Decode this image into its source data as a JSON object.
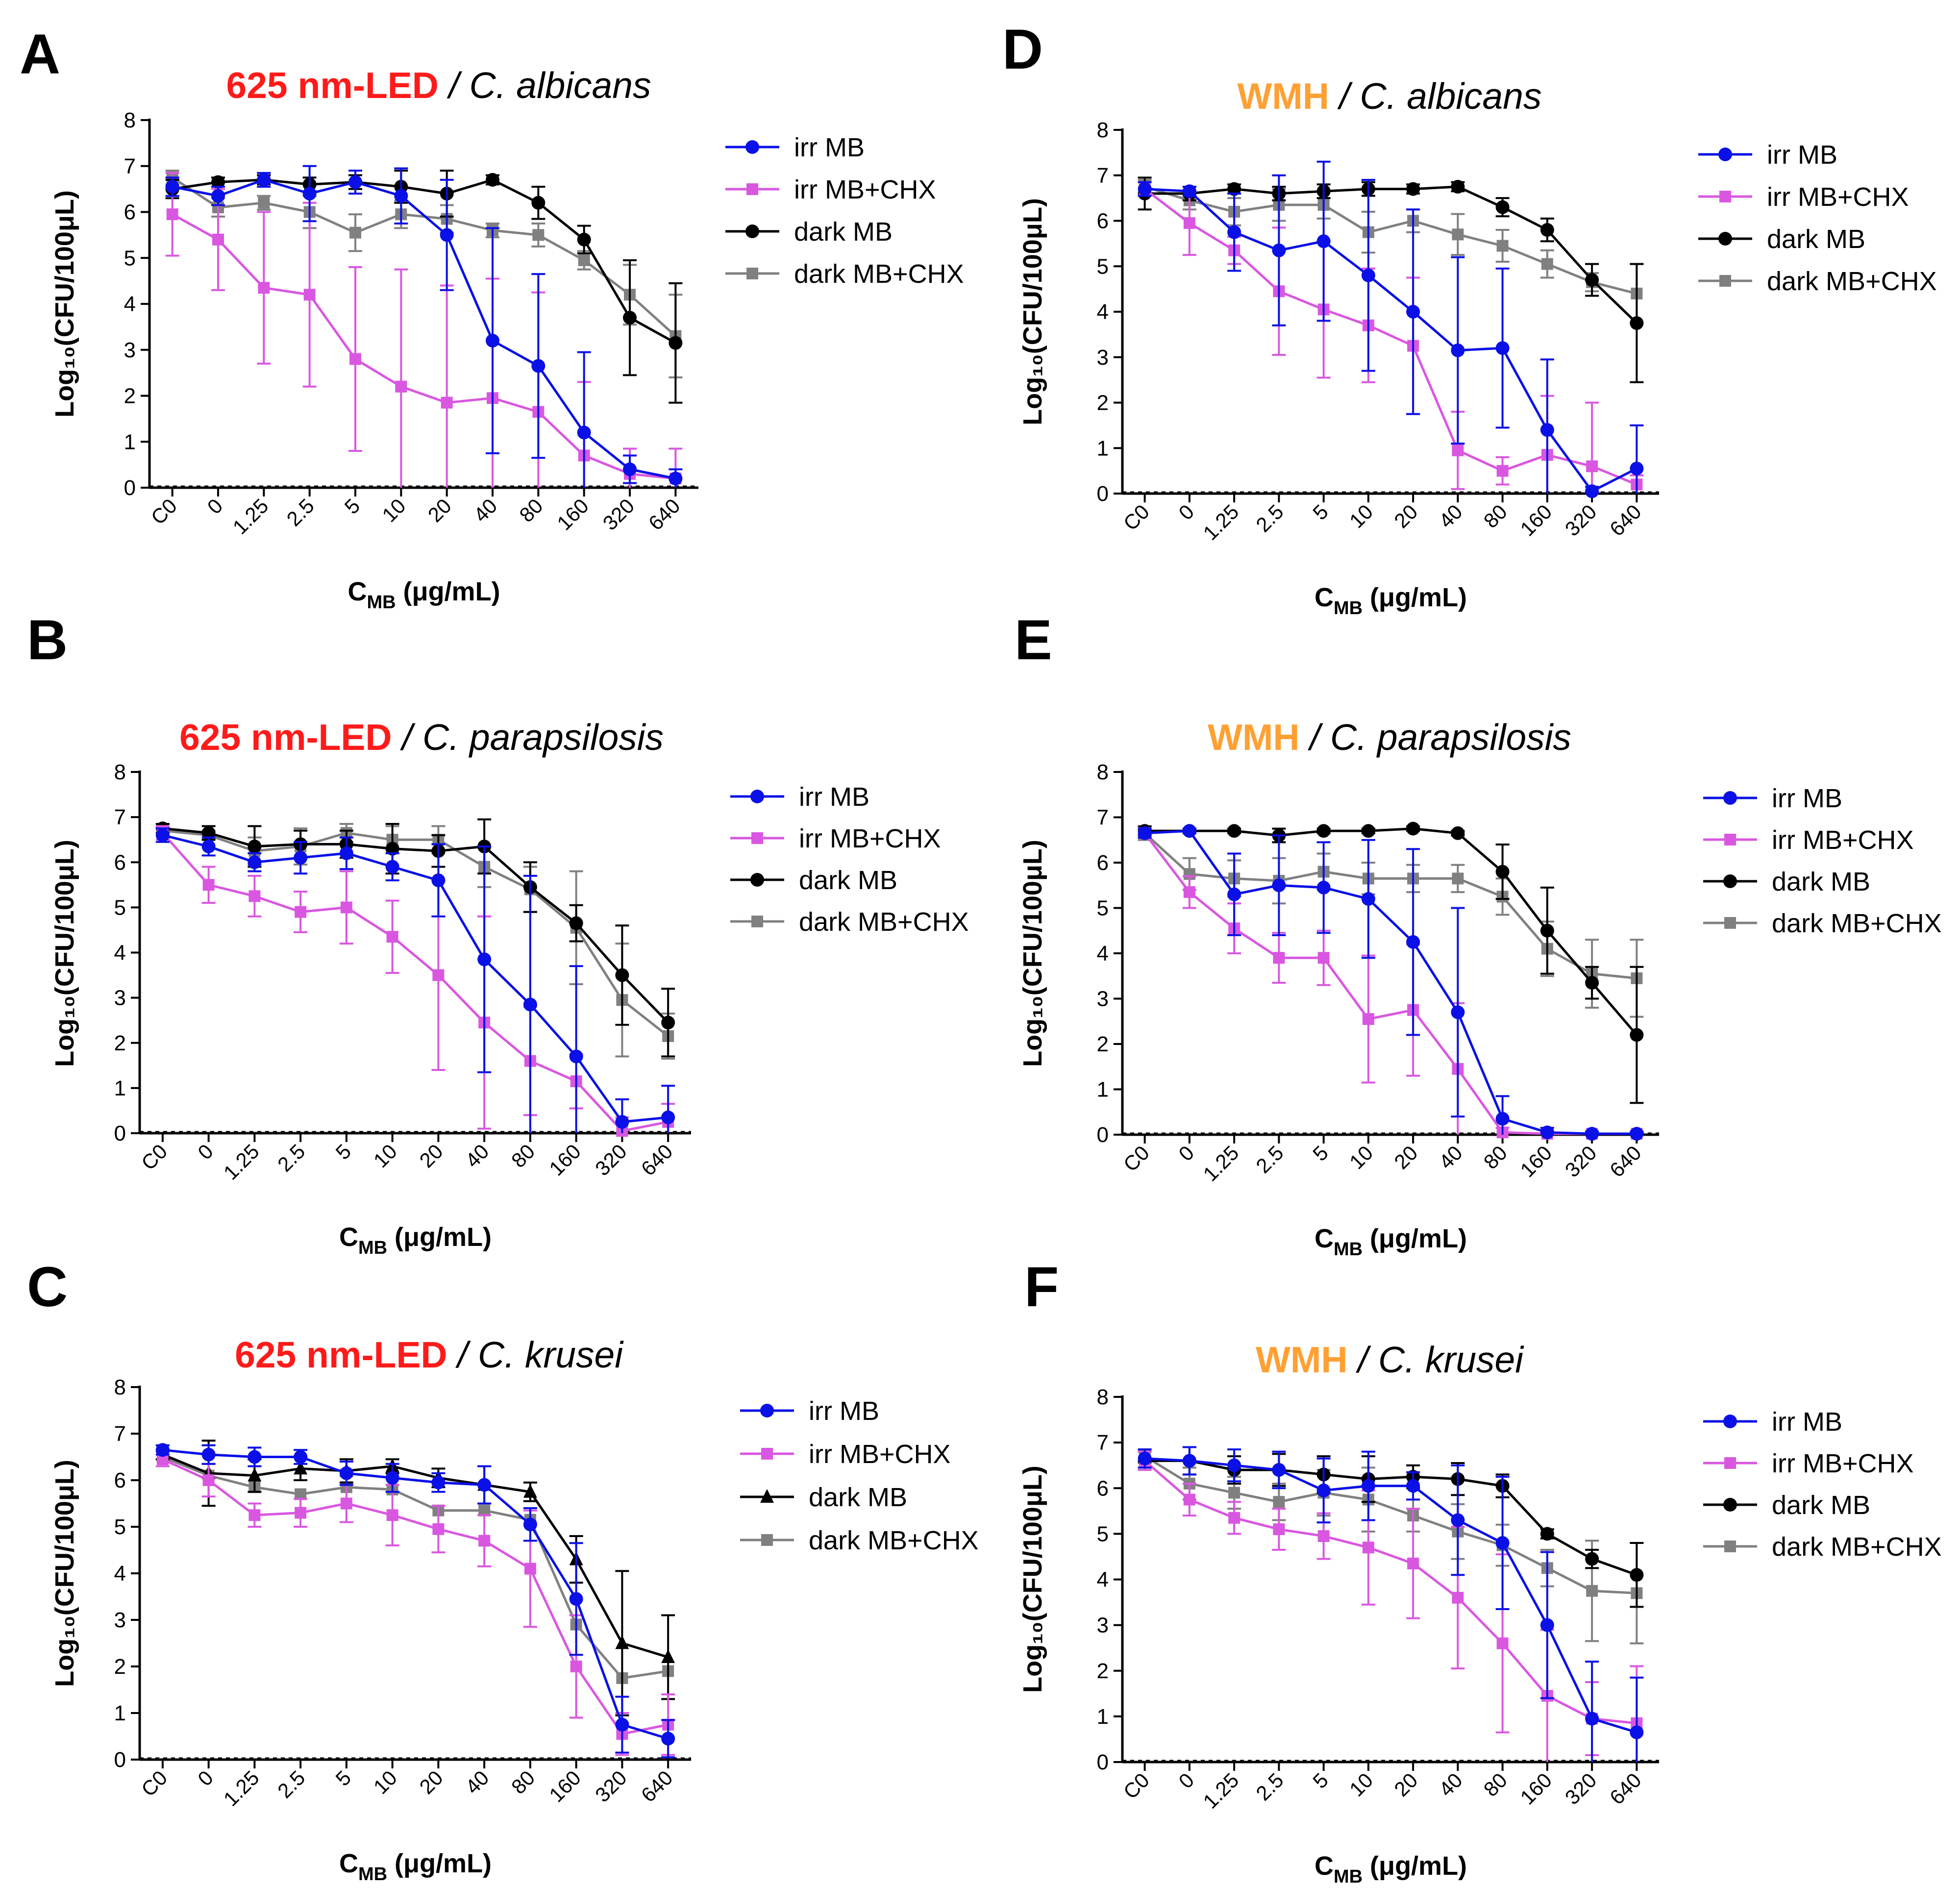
{
  "chart_data": [
    {
      "panel": "A",
      "type": "line",
      "title_highlight": "625 nm-LED",
      "title_highlight_color": "#ff1a1a",
      "title_rest": " / C. albicans",
      "ylabel": "Log₁₀(CFU/100μL)",
      "xlabel": "C_MB (μg/mL)",
      "ylim": [
        0,
        8
      ],
      "categories": [
        "C0",
        "0",
        "1.25",
        "2.5",
        "5",
        "10",
        "20",
        "40",
        "80",
        "160",
        "320",
        "640"
      ],
      "series": [
        {
          "name": "irr MB",
          "color": "#0a10e6",
          "marker": "circle",
          "values": [
            6.55,
            6.35,
            6.7,
            6.4,
            6.65,
            6.35,
            5.5,
            3.2,
            2.65,
            1.2,
            0.4,
            0.2
          ],
          "errors": [
            0.2,
            0.2,
            0.15,
            0.6,
            0.25,
            0.6,
            1.2,
            2.45,
            2.0,
            1.75,
            0.3,
            0.2
          ]
        },
        {
          "name": "irr MB+CHX",
          "color": "#d957e0",
          "marker": "square",
          "values": [
            5.95,
            5.4,
            4.35,
            4.2,
            2.8,
            2.2,
            1.85,
            1.95,
            1.65,
            0.7,
            0.3,
            0.2
          ],
          "errors": [
            0.9,
            1.1,
            1.65,
            2.0,
            2.0,
            2.55,
            2.55,
            2.6,
            2.6,
            1.6,
            0.55,
            0.65
          ]
        },
        {
          "name": "dark MB",
          "color": "#000000",
          "marker": "circle",
          "values": [
            6.5,
            6.65,
            6.7,
            6.6,
            6.65,
            6.55,
            6.4,
            6.7,
            6.2,
            5.4,
            3.7,
            3.15
          ],
          "errors": [
            0.2,
            0.1,
            0.1,
            0.15,
            0.15,
            0.35,
            0.5,
            0.1,
            0.35,
            0.3,
            1.25,
            1.3
          ]
        },
        {
          "name": "dark MB+CHX",
          "color": "#808080",
          "marker": "square",
          "values": [
            6.75,
            6.1,
            6.2,
            6.0,
            5.55,
            5.95,
            5.85,
            5.6,
            5.5,
            4.95,
            4.2,
            3.3
          ],
          "errors": [
            0.15,
            0.2,
            0.15,
            0.35,
            0.4,
            0.3,
            0.3,
            0.15,
            0.25,
            0.2,
            0.65,
            0.9
          ]
        }
      ]
    },
    {
      "panel": "B",
      "type": "line",
      "title_highlight": "625 nm-LED",
      "title_highlight_color": "#ff1a1a",
      "title_rest": " / C. parapsilosis",
      "ylabel": "Log₁₀(CFU/100μL)",
      "xlabel": "C_MB (μg/mL)",
      "ylim": [
        0,
        8
      ],
      "categories": [
        "C0",
        "0",
        "1.25",
        "2.5",
        "5",
        "10",
        "20",
        "40",
        "80",
        "160",
        "320",
        "640"
      ],
      "series": [
        {
          "name": "irr MB",
          "color": "#0a10e6",
          "marker": "circle",
          "values": [
            6.6,
            6.35,
            6.0,
            6.1,
            6.2,
            5.9,
            5.6,
            3.85,
            2.85,
            1.7,
            0.25,
            0.35
          ],
          "errors": [
            0.15,
            0.2,
            0.2,
            0.35,
            0.35,
            0.3,
            0.8,
            2.5,
            2.85,
            2.0,
            0.5,
            0.7
          ]
        },
        {
          "name": "irr MB+CHX",
          "color": "#d957e0",
          "marker": "square",
          "values": [
            6.65,
            5.5,
            5.25,
            4.9,
            5.0,
            4.35,
            3.5,
            2.45,
            1.6,
            1.15,
            0.05,
            0.25
          ],
          "errors": [
            0.15,
            0.4,
            0.45,
            0.45,
            0.8,
            0.8,
            2.1,
            2.35,
            1.2,
            0.6,
            0.3,
            0.4
          ]
        },
        {
          "name": "dark MB",
          "color": "#000000",
          "marker": "circle",
          "values": [
            6.75,
            6.65,
            6.35,
            6.4,
            6.4,
            6.3,
            6.25,
            6.35,
            5.45,
            4.65,
            3.5,
            2.45
          ],
          "errors": [
            0.1,
            0.15,
            0.45,
            0.3,
            0.3,
            0.55,
            0.35,
            0.6,
            0.55,
            0.4,
            1.1,
            0.75
          ]
        },
        {
          "name": "dark MB+CHX",
          "color": "#808080",
          "marker": "square",
          "values": [
            6.7,
            6.6,
            6.25,
            6.35,
            6.65,
            6.5,
            6.5,
            5.9,
            5.4,
            4.55,
            2.95,
            2.15
          ],
          "errors": [
            0.1,
            0.1,
            0.3,
            0.4,
            0.2,
            0.3,
            0.3,
            0.45,
            0.5,
            1.25,
            1.25,
            0.5
          ]
        }
      ]
    },
    {
      "panel": "C",
      "type": "line",
      "title_highlight": "625 nm-LED",
      "title_highlight_color": "#ff1a1a",
      "title_rest": " / C. krusei",
      "ylabel": "Log₁₀(CFU/100μL)",
      "xlabel": "C_MB (μg/mL)",
      "ylim": [
        0,
        8
      ],
      "categories": [
        "C0",
        "0",
        "1.25",
        "2.5",
        "5",
        "10",
        "20",
        "40",
        "80",
        "160",
        "320",
        "640"
      ],
      "series": [
        {
          "name": "irr MB",
          "color": "#0a10e6",
          "marker": "circle",
          "values": [
            6.65,
            6.55,
            6.5,
            6.5,
            6.15,
            6.05,
            5.95,
            5.9,
            5.05,
            3.45,
            0.75,
            0.45
          ],
          "errors": [
            0.1,
            0.2,
            0.2,
            0.15,
            0.25,
            0.3,
            0.2,
            0.4,
            0.35,
            1.2,
            0.6,
            0.4
          ]
        },
        {
          "name": "irr MB+CHX",
          "color": "#d957e0",
          "marker": "square",
          "values": [
            6.45,
            6.0,
            5.25,
            5.3,
            5.5,
            5.25,
            4.95,
            4.7,
            4.1,
            2.0,
            0.55,
            0.75
          ],
          "errors": [
            0.15,
            0.35,
            0.25,
            0.3,
            0.4,
            0.65,
            0.5,
            0.55,
            1.25,
            1.1,
            0.45,
            0.65
          ]
        },
        {
          "name": "dark MB",
          "color": "#000000",
          "marker": "triangle",
          "values": [
            6.55,
            6.15,
            6.1,
            6.25,
            6.2,
            6.3,
            6.05,
            5.9,
            5.75,
            4.3,
            2.5,
            2.2
          ],
          "errors": [
            0.1,
            0.7,
            0.35,
            0.25,
            0.25,
            0.15,
            0.2,
            0.4,
            0.2,
            0.5,
            1.55,
            0.9
          ]
        },
        {
          "name": "dark MB+CHX",
          "color": "#808080",
          "marker": "square",
          "values": [
            6.5,
            6.1,
            5.85,
            5.7,
            5.85,
            5.8,
            5.35,
            5.35,
            5.15,
            2.9,
            1.75,
            1.9
          ]
        }
      ]
    },
    {
      "panel": "D",
      "type": "line",
      "title_highlight": "WMH",
      "title_highlight_color": "#ffa033",
      "title_rest": " / C. albicans",
      "ylabel": "Log₁₀(CFU/100μL)",
      "xlabel": "C_MB (μg/mL)",
      "ylim": [
        0,
        8
      ],
      "categories": [
        "C0",
        "0",
        "1.25",
        "2.5",
        "5",
        "10",
        "20",
        "40",
        "80",
        "160",
        "320",
        "640"
      ],
      "series": [
        {
          "name": "irr MB",
          "color": "#0a10e6",
          "marker": "circle",
          "values": [
            6.7,
            6.65,
            5.75,
            5.35,
            5.55,
            4.8,
            4.0,
            3.15,
            3.2,
            1.4,
            0.05,
            0.55
          ],
          "errors": [
            0.15,
            0.1,
            0.85,
            1.65,
            1.75,
            2.1,
            2.25,
            2.05,
            1.75,
            1.55,
            0.1,
            0.95
          ]
        },
        {
          "name": "irr MB+CHX",
          "color": "#d957e0",
          "marker": "square",
          "values": [
            6.7,
            5.95,
            5.35,
            4.45,
            4.05,
            3.7,
            3.25,
            0.95,
            0.5,
            0.85,
            0.6,
            0.2
          ],
          "errors": [
            0.15,
            0.7,
            0.3,
            1.4,
            1.5,
            1.25,
            1.5,
            0.85,
            0.3,
            1.3,
            1.4,
            0.2
          ]
        },
        {
          "name": "dark MB",
          "color": "#000000",
          "marker": "circle",
          "values": [
            6.6,
            6.6,
            6.7,
            6.6,
            6.65,
            6.7,
            6.7,
            6.75,
            6.3,
            5.8,
            4.7,
            3.75
          ],
          "errors": [
            0.35,
            0.15,
            0.1,
            0.15,
            0.15,
            0.15,
            0.1,
            0.1,
            0.2,
            0.25,
            0.35,
            1.3
          ]
        },
        {
          "name": "dark MB+CHX",
          "color": "#808080",
          "marker": "square",
          "values": [
            6.75,
            6.45,
            6.2,
            6.35,
            6.35,
            5.75,
            6.0,
            5.7,
            5.45,
            5.05,
            4.65,
            4.4
          ],
          "errors": [
            0.15,
            0.2,
            0.3,
            0.35,
            0.3,
            0.45,
            0.25,
            0.45,
            0.35,
            0.3,
            0.2,
            0.65
          ]
        }
      ]
    },
    {
      "panel": "E",
      "type": "line",
      "title_highlight": "WMH",
      "title_highlight_color": "#ffa033",
      "title_rest": " / C. parapsilosis",
      "ylabel": "Log₁₀(CFU/100μL)",
      "xlabel": "C_MB (μg/mL)",
      "ylim": [
        0,
        8
      ],
      "categories": [
        "C0",
        "0",
        "1.25",
        "2.5",
        "5",
        "10",
        "20",
        "40",
        "80",
        "160",
        "320",
        "640"
      ],
      "series": [
        {
          "name": "irr MB",
          "color": "#0a10e6",
          "marker": "circle",
          "values": [
            6.65,
            6.7,
            5.3,
            5.5,
            5.45,
            5.2,
            4.25,
            2.7,
            0.35,
            0.05,
            0.02,
            0.02
          ],
          "errors": [
            0.1,
            0.05,
            0.9,
            1.1,
            1.0,
            1.3,
            2.05,
            2.3,
            0.5,
            0.1,
            0.05,
            0.05
          ]
        },
        {
          "name": "irr MB+CHX",
          "color": "#d957e0",
          "marker": "square",
          "values": [
            6.65,
            5.35,
            4.55,
            3.9,
            3.9,
            2.55,
            2.75,
            1.45,
            0.05,
            0.02,
            0.02,
            0.02
          ],
          "errors": [
            0.1,
            0.35,
            0.55,
            0.55,
            0.6,
            1.4,
            1.45,
            1.45,
            0.1,
            0.05,
            0.05,
            0.05
          ]
        },
        {
          "name": "dark MB",
          "color": "#000000",
          "marker": "circle",
          "values": [
            6.7,
            6.7,
            6.7,
            6.6,
            6.7,
            6.7,
            6.75,
            6.65,
            5.8,
            4.5,
            3.35,
            2.2
          ],
          "errors": [
            0.1,
            0.05,
            0.05,
            0.15,
            0.05,
            0.05,
            0.05,
            0.05,
            0.6,
            0.95,
            0.35,
            1.5
          ]
        },
        {
          "name": "dark MB+CHX",
          "color": "#808080",
          "marker": "square",
          "values": [
            6.65,
            5.75,
            5.65,
            5.6,
            5.8,
            5.65,
            5.65,
            5.65,
            5.25,
            4.1,
            3.55,
            3.45
          ],
          "errors": [
            0.15,
            0.35,
            0.4,
            0.5,
            0.4,
            0.35,
            0.3,
            0.3,
            0.4,
            0.6,
            0.75,
            0.85
          ]
        }
      ]
    },
    {
      "panel": "F",
      "type": "line",
      "title_highlight": "WMH",
      "title_highlight_color": "#ffa033",
      "title_rest": " / C. krusei",
      "ylabel": "Log₁₀(CFU/100μL)",
      "xlabel": "C_MB (μg/mL)",
      "ylim": [
        0,
        8
      ],
      "categories": [
        "C0",
        "0",
        "1.25",
        "2.5",
        "5",
        "10",
        "20",
        "40",
        "80",
        "160",
        "320",
        "640"
      ],
      "series": [
        {
          "name": "irr MB",
          "color": "#0a10e6",
          "marker": "circle",
          "values": [
            6.65,
            6.6,
            6.5,
            6.4,
            5.95,
            6.05,
            6.05,
            5.3,
            4.8,
            3.0,
            0.95,
            0.65
          ],
          "errors": [
            0.2,
            0.3,
            0.35,
            0.4,
            0.7,
            0.75,
            0.3,
            1.2,
            1.45,
            1.6,
            1.25,
            1.2
          ]
        },
        {
          "name": "irr MB+CHX",
          "color": "#d957e0",
          "marker": "square",
          "values": [
            6.6,
            5.75,
            5.35,
            5.1,
            4.95,
            4.7,
            4.35,
            3.6,
            2.6,
            1.45,
            0.95,
            0.85
          ],
          "errors": [
            0.2,
            0.35,
            0.35,
            0.45,
            0.5,
            1.25,
            1.2,
            1.55,
            1.95,
            1.45,
            0.8,
            1.25
          ]
        },
        {
          "name": "dark MB",
          "color": "#000000",
          "marker": "circle",
          "values": [
            6.6,
            6.6,
            6.4,
            6.4,
            6.3,
            6.2,
            6.25,
            6.2,
            6.05,
            5.0,
            4.45,
            4.1
          ],
          "errors": [
            0.2,
            0.3,
            0.3,
            0.35,
            0.4,
            0.5,
            0.25,
            0.35,
            0.25,
            0.1,
            0.2,
            0.7
          ]
        },
        {
          "name": "dark MB+CHX",
          "color": "#808080",
          "marker": "square",
          "values": [
            6.7,
            6.1,
            5.9,
            5.7,
            5.9,
            5.75,
            5.4,
            5.05,
            4.75,
            4.25,
            3.75,
            3.7
          ],
          "errors": [
            0.15,
            0.35,
            0.35,
            0.4,
            0.5,
            0.7,
            0.35,
            0.6,
            0.45,
            0.4,
            1.1,
            1.1
          ]
        }
      ]
    }
  ]
}
